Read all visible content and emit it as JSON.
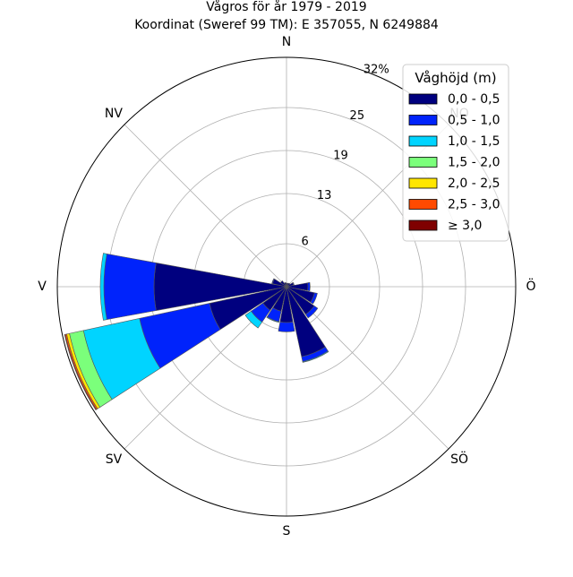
{
  "chart_data": {
    "type": "wind-rose",
    "title_lines": [
      "Vågros för år 1979 - 2019",
      "Koordinat (Sweref 99 TM): E 357055, N 6249884"
    ],
    "direction_labels": [
      "N",
      "NO",
      "Ö",
      "SÖ",
      "S",
      "SV",
      "V",
      "NV"
    ],
    "radial_unit": "%",
    "radial_max": 32,
    "radial_ticks": [
      6,
      13,
      19,
      25,
      32
    ],
    "radial_tick_labels": [
      "6",
      "13",
      "19",
      "25",
      "32%"
    ],
    "sectors": 16,
    "legend": {
      "title": "Våghöjd (m)",
      "placement": "top-right",
      "entries": [
        "0,0 - 0,5",
        "0,5 - 1,0",
        "1,0 - 1,5",
        "1,5 - 2,0",
        "2,0 - 2,5",
        "2,5 - 3,0",
        "≥ 3,0"
      ]
    },
    "colors": [
      "#00007f",
      "#0023fb",
      "#00d4ff",
      "#7bff7b",
      "#ffe600",
      "#ff4a00",
      "#7f0000"
    ],
    "series": [
      {
        "direction_deg": 0,
        "values": [
          0.5,
          0.0,
          0.0,
          0,
          0,
          0,
          0
        ]
      },
      {
        "direction_deg": 22.5,
        "values": [
          0.5,
          0.0,
          0.0,
          0,
          0,
          0,
          0
        ]
      },
      {
        "direction_deg": 45,
        "values": [
          0.6,
          0.0,
          0.0,
          0,
          0,
          0,
          0
        ]
      },
      {
        "direction_deg": 67.5,
        "values": [
          1.0,
          0.1,
          0.0,
          0,
          0,
          0,
          0
        ]
      },
      {
        "direction_deg": 90,
        "values": [
          3.0,
          0.3,
          0.0,
          0,
          0,
          0,
          0
        ]
      },
      {
        "direction_deg": 112.5,
        "values": [
          4.0,
          0.4,
          0.0,
          0,
          0,
          0,
          0
        ]
      },
      {
        "direction_deg": 135,
        "values": [
          4.7,
          0.6,
          0.0,
          0,
          0,
          0,
          0
        ]
      },
      {
        "direction_deg": 157.5,
        "values": [
          10.0,
          0.7,
          0.1,
          0,
          0,
          0,
          0
        ]
      },
      {
        "direction_deg": 180,
        "values": [
          5.0,
          1.3,
          0.0,
          0,
          0,
          0,
          0
        ]
      },
      {
        "direction_deg": 202.5,
        "values": [
          3.5,
          1.5,
          0.1,
          0,
          0,
          0,
          0
        ]
      },
      {
        "direction_deg": 225,
        "values": [
          4.0,
          2.0,
          1.0,
          0.0,
          0,
          0,
          0
        ]
      },
      {
        "direction_deg": 247.5,
        "values": [
          11.0,
          10.0,
          8.0,
          2.0,
          0.4,
          0.2,
          0.1
        ]
      },
      {
        "direction_deg": 270,
        "values": [
          18.5,
          7.0,
          0.5,
          0.0,
          0,
          0,
          0
        ]
      },
      {
        "direction_deg": 292.5,
        "values": [
          2.0,
          0.1,
          0.0,
          0,
          0,
          0,
          0
        ]
      },
      {
        "direction_deg": 315,
        "values": [
          1.0,
          0.0,
          0.0,
          0,
          0,
          0,
          0
        ]
      },
      {
        "direction_deg": 337.5,
        "values": [
          0.6,
          0.0,
          0.0,
          0,
          0,
          0,
          0
        ]
      }
    ]
  }
}
